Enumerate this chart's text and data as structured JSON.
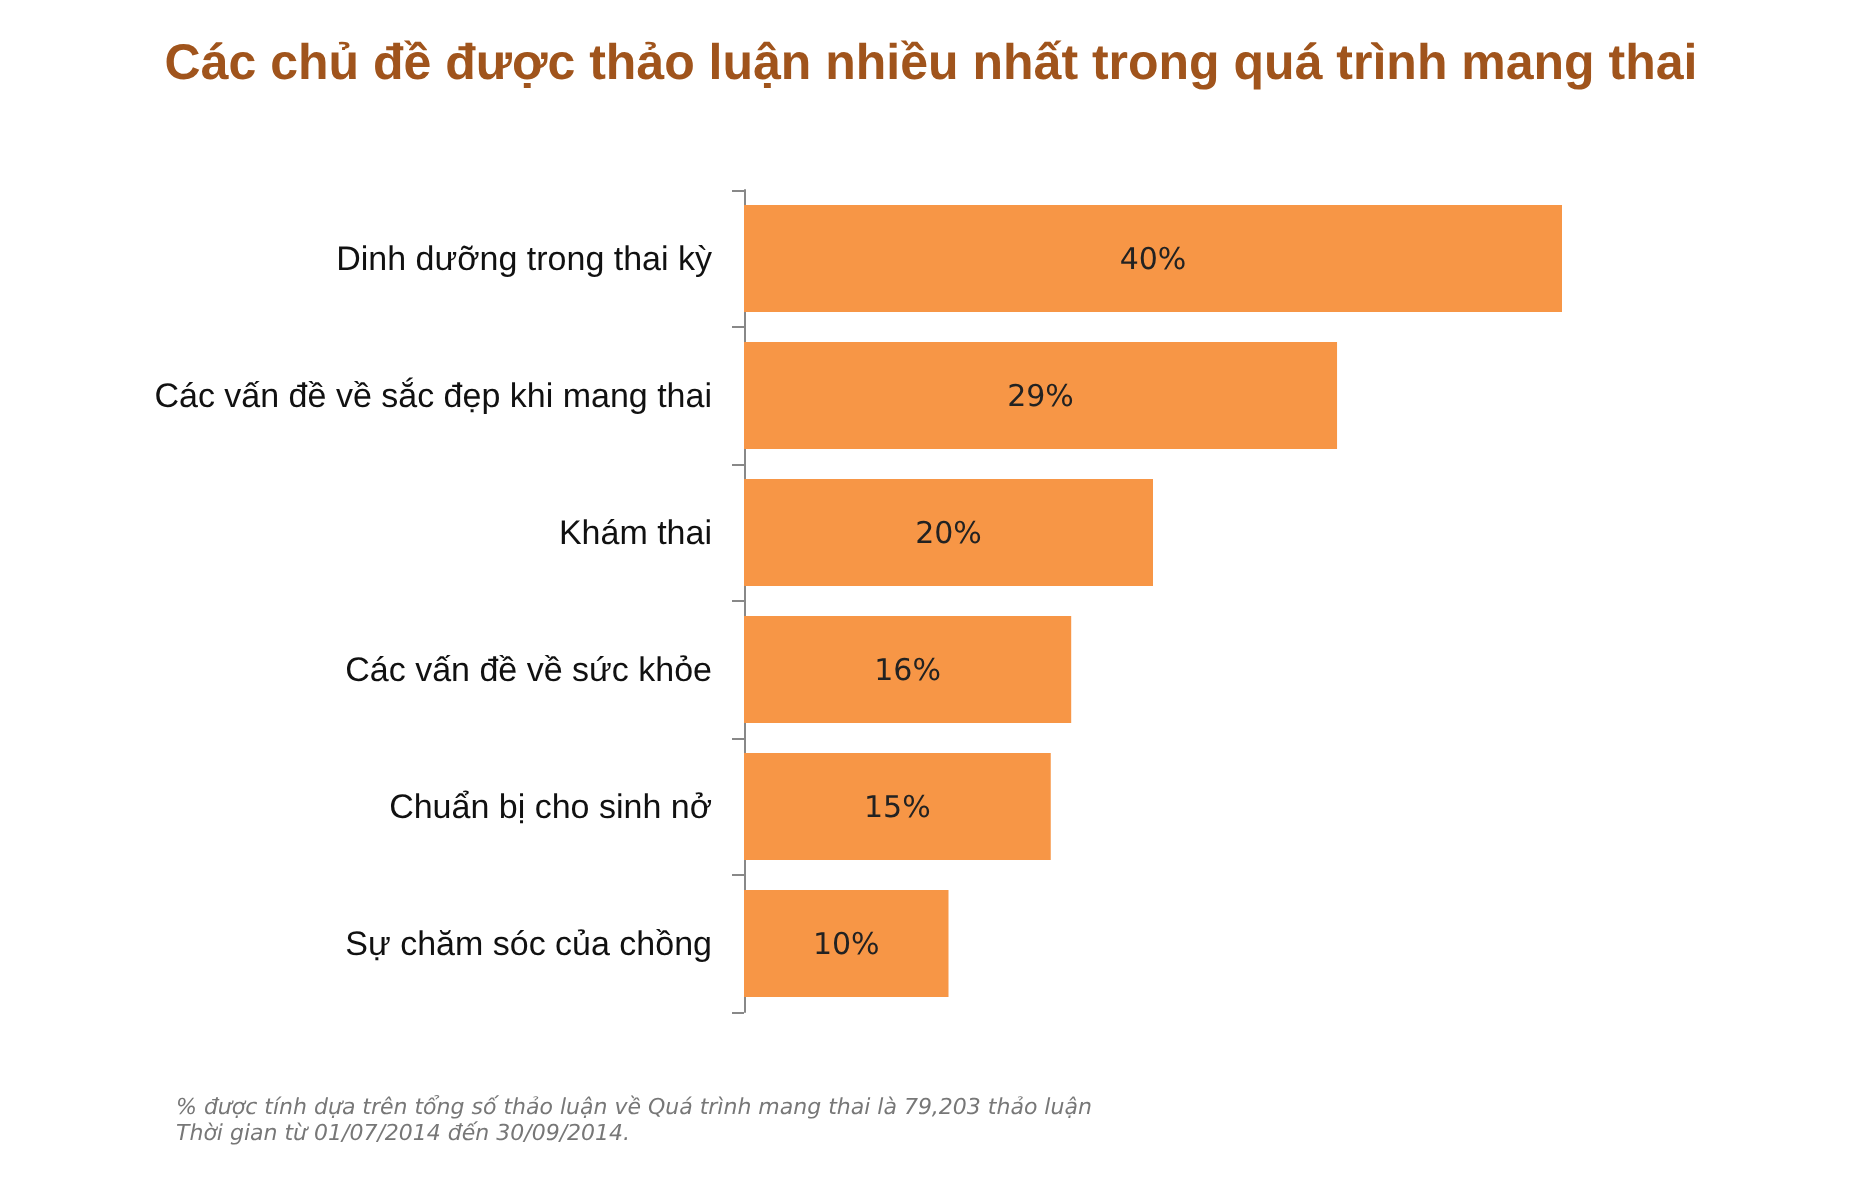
{
  "chart_data": {
    "type": "bar",
    "orientation": "horizontal",
    "title": "Các chủ đề được thảo luận nhiều nhất trong quá trình mang thai",
    "categories": [
      "Dinh dưỡng trong thai kỳ",
      "Các vấn đề về sắc đẹp khi mang thai",
      "Khám thai",
      "Các vấn đề về sức khỏe",
      "Chuẩn bị cho sinh nở",
      "Sự chăm sóc của chồng"
    ],
    "values": [
      40,
      29,
      20,
      16,
      15,
      10
    ],
    "value_labels": [
      "40%",
      "29%",
      "20%",
      "16%",
      "15%",
      "10%"
    ],
    "color": "#f79646",
    "annotations": [
      "% được tính dựa trên tổng số thảo luận về Quá trình mang thai là 79,203 thảo luận",
      "Thời gian từ 01/07/2014 đến 30/09/2014."
    ],
    "grid": false
  }
}
